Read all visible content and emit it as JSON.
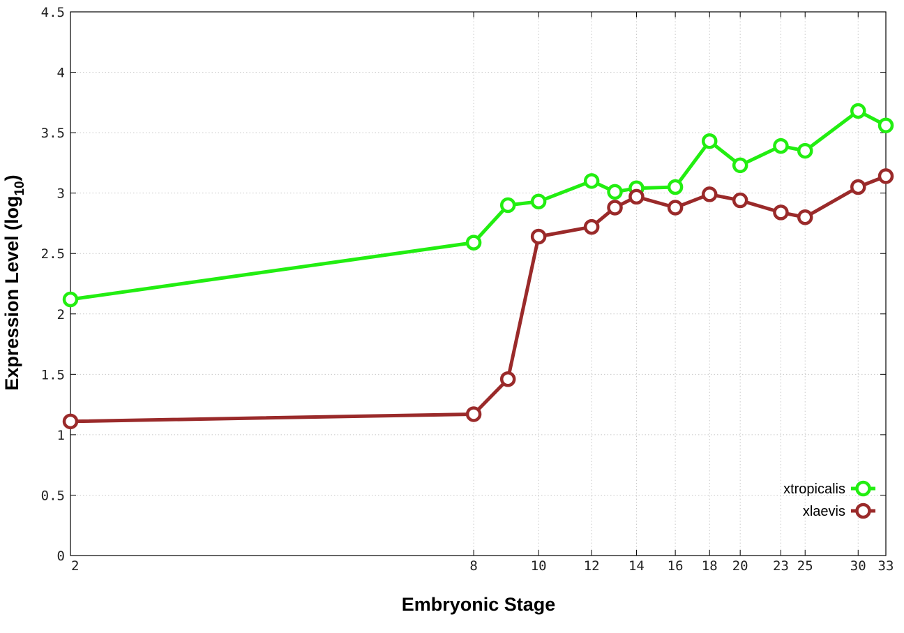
{
  "chart_data": {
    "type": "line",
    "title": "",
    "xlabel": "Embryonic Stage",
    "ylabel_main": "Expression Level (log",
    "ylabel_sub": "10",
    "ylabel_close": ")",
    "ylim": [
      0,
      4.5
    ],
    "xlim": [
      2,
      33
    ],
    "x_scale": "log",
    "grid": true,
    "legend_position": "bottom-right",
    "y_ticks": [
      {
        "value": 0,
        "label": "0"
      },
      {
        "value": 0.5,
        "label": "0.5"
      },
      {
        "value": 1,
        "label": "1"
      },
      {
        "value": 1.5,
        "label": "1.5"
      },
      {
        "value": 2,
        "label": "2"
      },
      {
        "value": 2.5,
        "label": "2.5"
      },
      {
        "value": 3,
        "label": "3"
      },
      {
        "value": 3.5,
        "label": "3.5"
      },
      {
        "value": 4,
        "label": "4"
      },
      {
        "value": 4.5,
        "label": "4.5"
      }
    ],
    "x_ticks": [
      {
        "value": 2,
        "label": "2"
      },
      {
        "value": 8,
        "label": "8"
      },
      {
        "value": 10,
        "label": "10"
      },
      {
        "value": 12,
        "label": "12"
      },
      {
        "value": 14,
        "label": "14"
      },
      {
        "value": 16,
        "label": "16"
      },
      {
        "value": 18,
        "label": "18"
      },
      {
        "value": 20,
        "label": "20"
      },
      {
        "value": 23,
        "label": "23"
      },
      {
        "value": 25,
        "label": "25"
      },
      {
        "value": 30,
        "label": "30"
      },
      {
        "value": 33,
        "label": "33"
      }
    ],
    "x": [
      2,
      8,
      9,
      10,
      12,
      13,
      14,
      16,
      18,
      20,
      23,
      25,
      30,
      33
    ],
    "series": [
      {
        "name": "xtropicalis",
        "color": "#22ee11",
        "values": [
          2.12,
          2.59,
          2.9,
          2.93,
          3.1,
          3.01,
          3.04,
          3.05,
          3.43,
          3.23,
          3.39,
          3.35,
          3.68,
          3.56
        ]
      },
      {
        "name": "xlaevis",
        "color": "#9a2a2a",
        "values": [
          1.11,
          1.17,
          1.46,
          2.64,
          2.72,
          2.88,
          2.97,
          2.88,
          2.99,
          2.94,
          2.84,
          2.8,
          3.05,
          3.14
        ]
      }
    ]
  }
}
